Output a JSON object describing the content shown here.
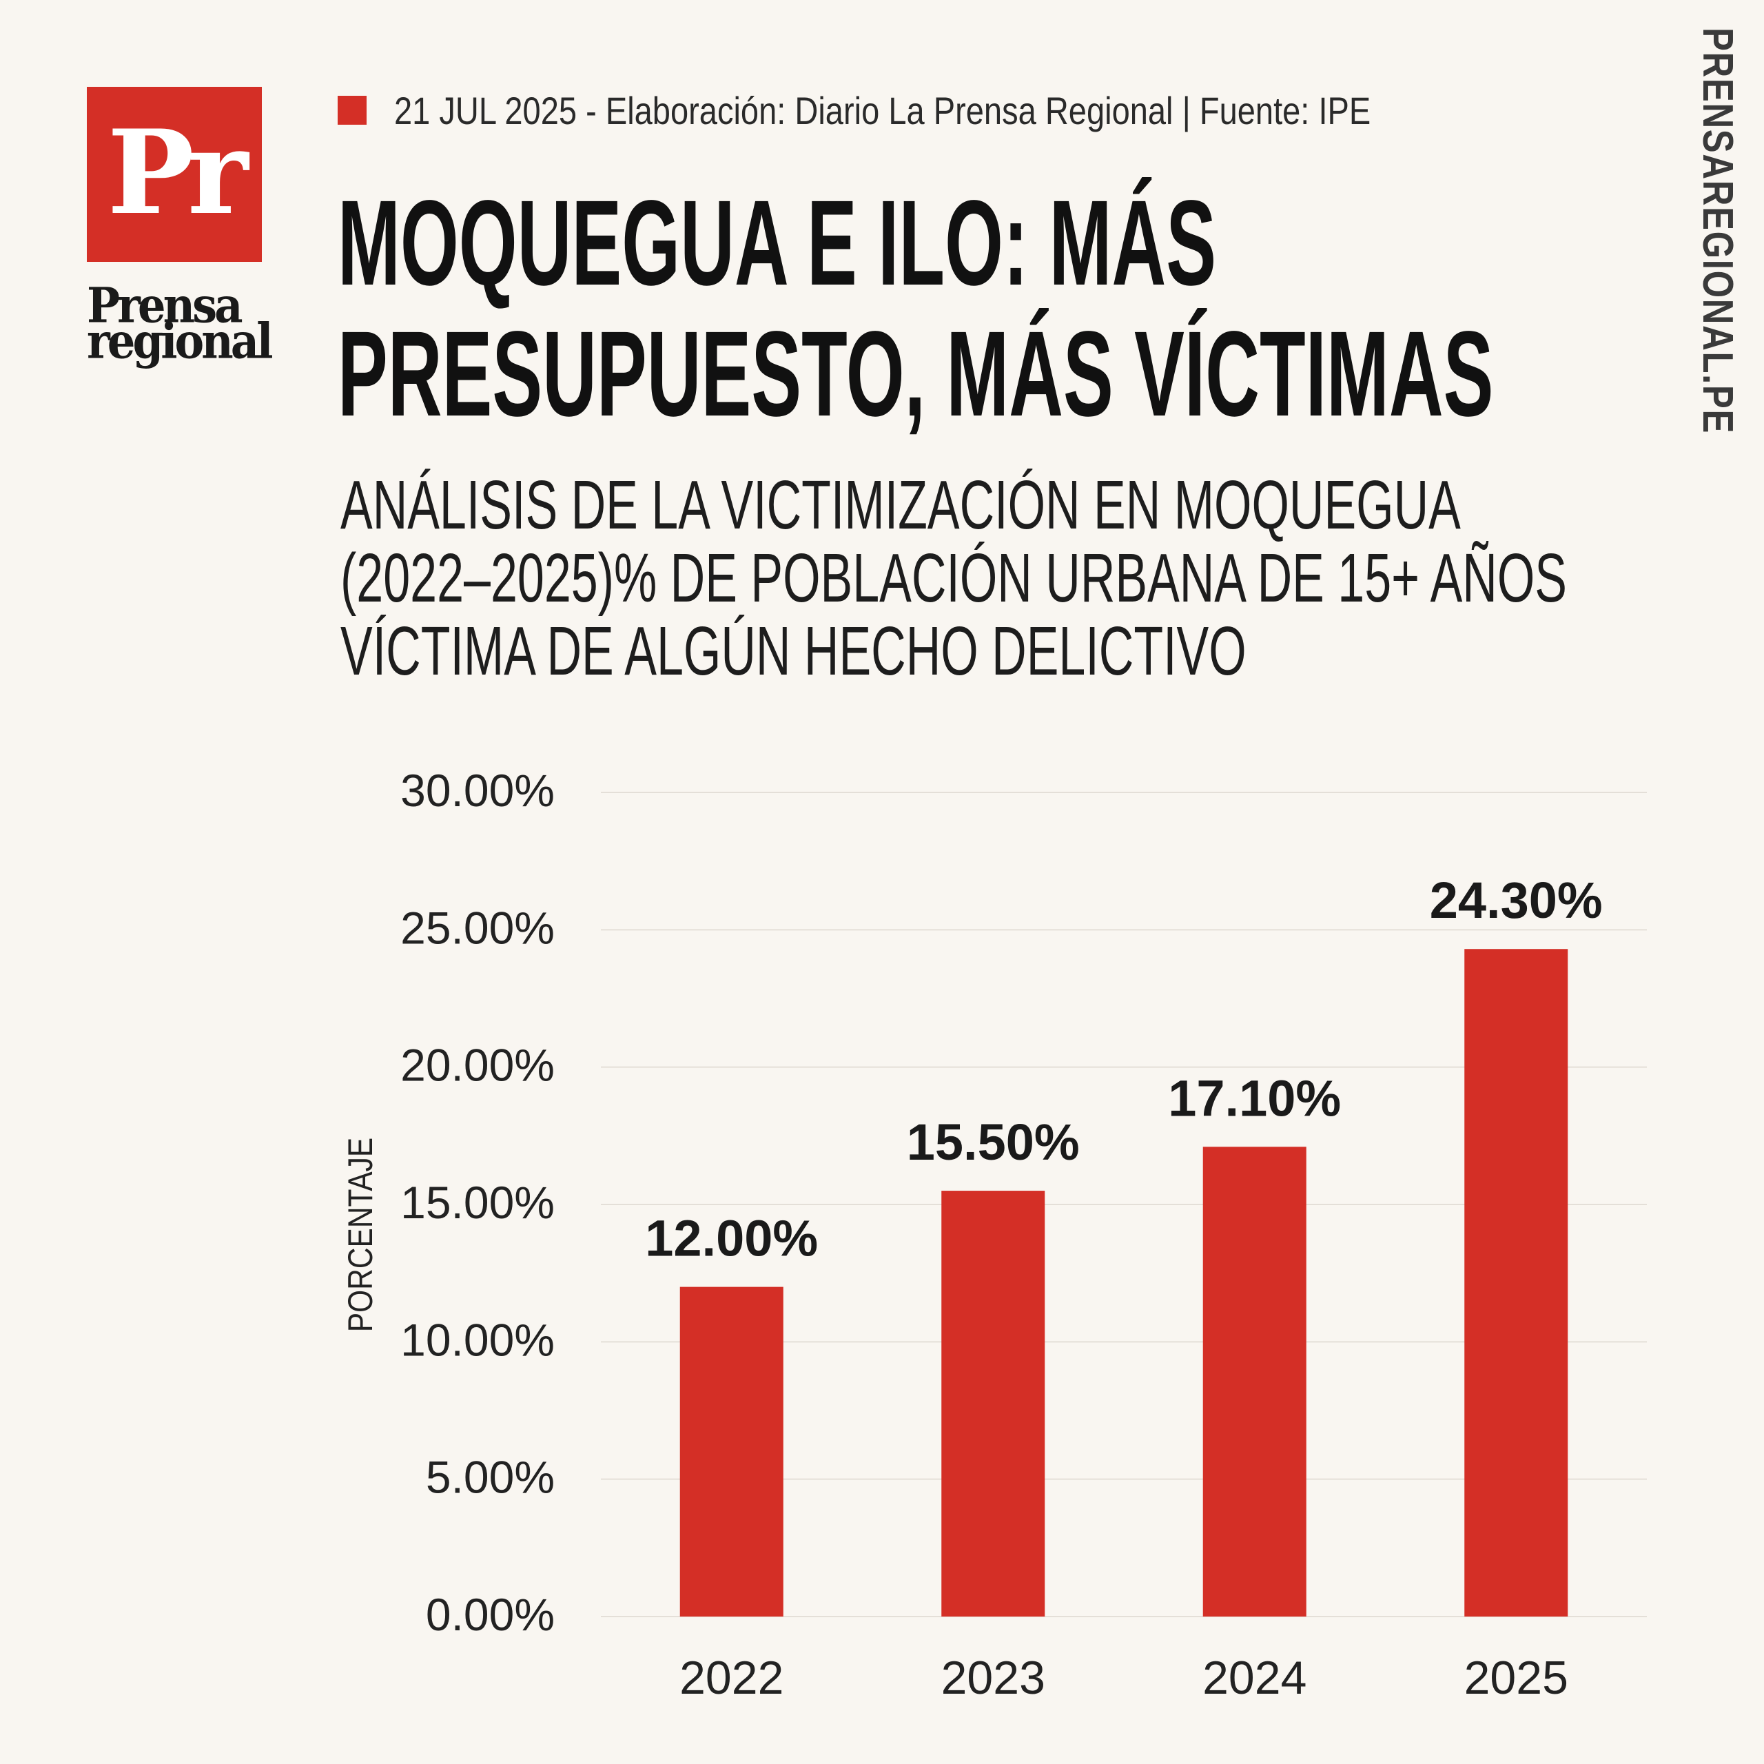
{
  "brand": {
    "logo_mark": "Pr",
    "logo_word_1": "Prensa",
    "logo_word_2": "regional",
    "site": "PRENSAREGIONAL.PE",
    "accent_color": "#d42f26"
  },
  "meta": {
    "text": "21 JUL 2025 -  Elaboración: Diario La Prensa Regional | Fuente: IPE"
  },
  "title": {
    "line1": "MOQUEGUA E ILO: MÁS",
    "line2": "PRESUPUESTO, MÁS VÍCTIMAS"
  },
  "subtitle": {
    "line1": "ANÁLISIS DE LA VICTIMIZACIÓN EN MOQUEGUA",
    "line2": "(2022–2025)% DE POBLACIÓN URBANA DE 15+ AÑOS",
    "line3": "VÍCTIMA DE ALGÚN HECHO DELICTIVO"
  },
  "chart_data": {
    "type": "bar",
    "categories": [
      "2022",
      "2023",
      "2024",
      "2025"
    ],
    "values": [
      12.0,
      15.5,
      17.1,
      24.3
    ],
    "value_labels": [
      "12.00%",
      "15.50%",
      "17.10%",
      "24.30%"
    ],
    "ylabel": "PORCENTAJE",
    "xlabel": "",
    "ylim": [
      0,
      30
    ],
    "yticks": [
      0,
      5,
      10,
      15,
      20,
      25,
      30
    ],
    "ytick_labels": [
      "0.00%",
      "5.00%",
      "10.00%",
      "15.00%",
      "20.00%",
      "25.00%",
      "30.00%"
    ],
    "grid": true,
    "bar_color": "#d42f26"
  }
}
